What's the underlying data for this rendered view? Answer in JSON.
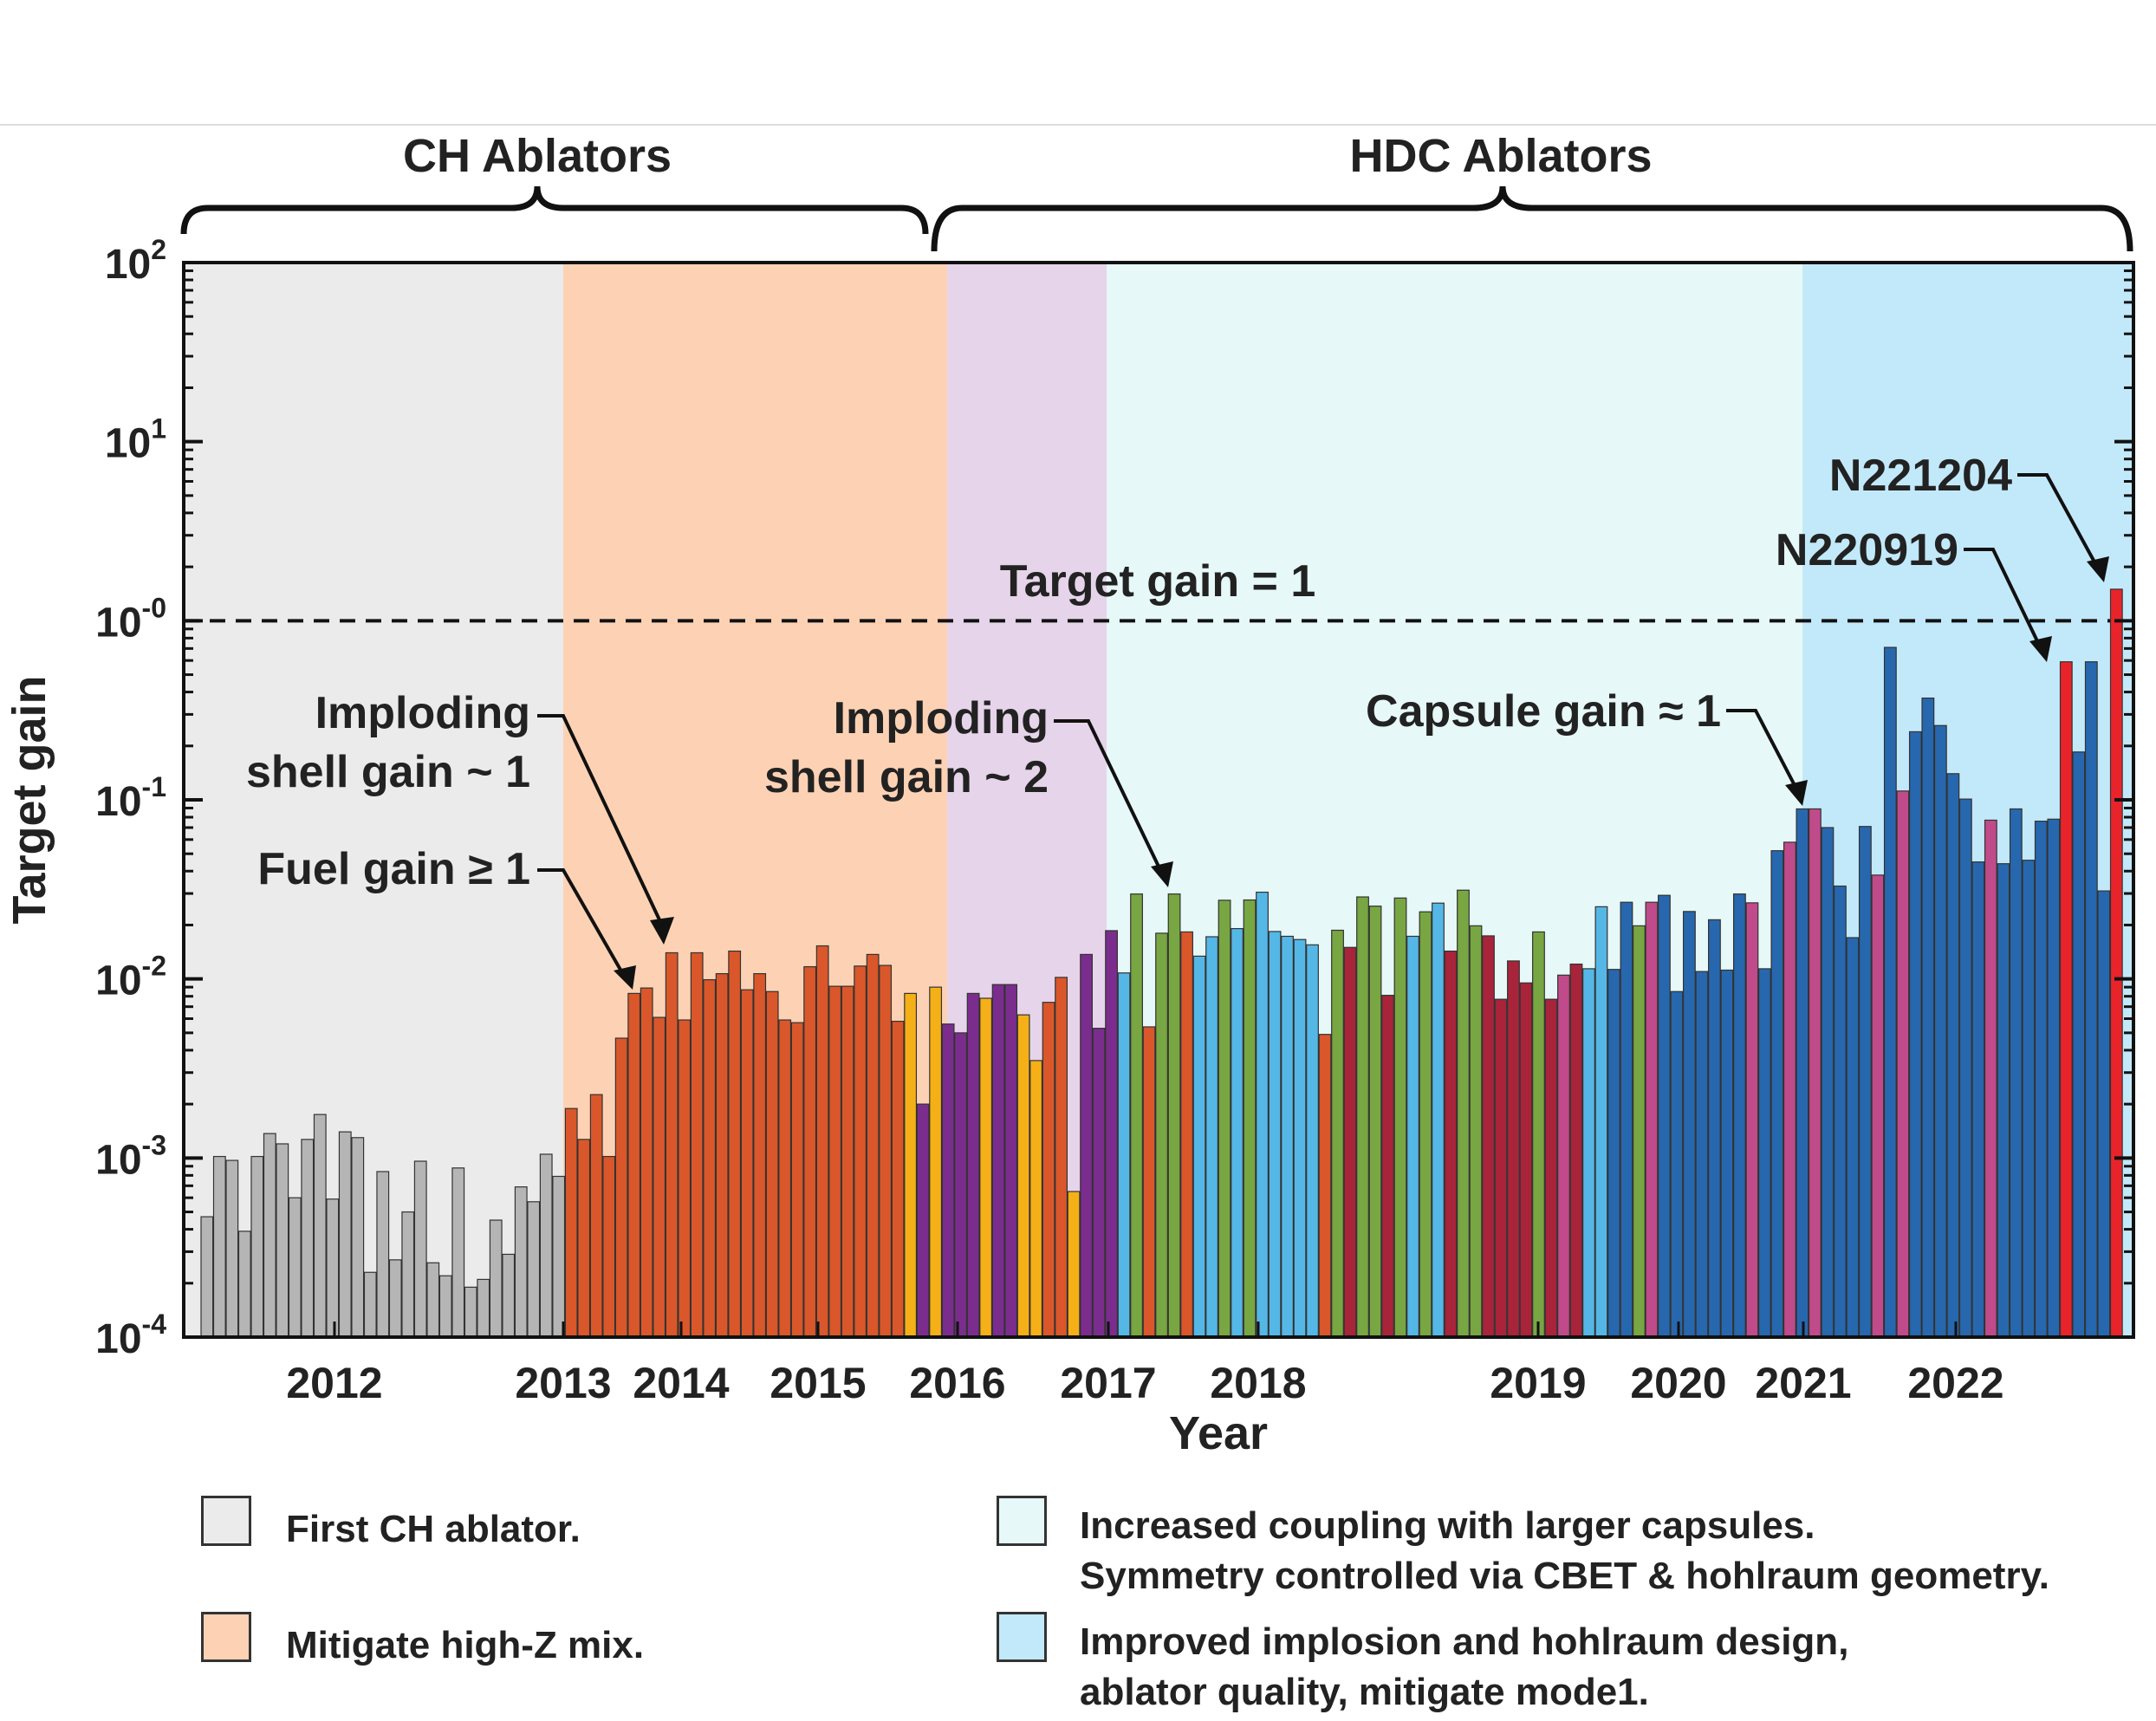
{
  "chart_data": {
    "type": "bar",
    "ylabel": "Target gain",
    "xlabel": "Year",
    "yscale": "log",
    "ylim": [
      0.0001,
      100
    ],
    "yticks": [
      "10-4",
      "10-3",
      "10-2",
      "10-1",
      "10-0",
      "101",
      "102"
    ],
    "xticks": [
      "2012",
      "2013",
      "2014",
      "2015",
      "2016",
      "2017",
      "2018",
      "2019",
      "2020",
      "2021",
      "2022"
    ],
    "categories": [
      "CH Ablators",
      "HDC Ablators"
    ],
    "gain_line": {
      "value": 1,
      "label": "Target gain = 1"
    },
    "regions": [
      {
        "name": "First CH ablator.",
        "color": "#ebebeb"
      },
      {
        "name": "Mitigate high-Z mix.",
        "color": "#fdd2b4"
      },
      {
        "name": "",
        "color": "#e6d4ea"
      },
      {
        "name": "Increased coupling with larger capsules.\nSymmetry controlled via CBET & hohlraum geometry.",
        "color": "#e6f8f7"
      },
      {
        "name": "Improved implosion and hohlraum design,\nablator quality, mitigate mode1.",
        "color": "#c2e9fa"
      }
    ],
    "annotations": [
      {
        "text": "Imploding\nshell gain ~ 1"
      },
      {
        "text": "Fuel gain ≥ 1"
      },
      {
        "text": "Imploding\nshell gain ~ 2"
      },
      {
        "text": "Capsule gain ≈ 1"
      },
      {
        "text": "N220919"
      },
      {
        "text": "N221204"
      }
    ],
    "bar_colors": {
      "g": "#b5b5b5",
      "o": "#d9572a",
      "y": "#f5b018",
      "p": "#7b2d8e",
      "G": "#78a642",
      "c": "#55b7e6",
      "r": "#a8243a",
      "m": "#c04b8a",
      "b": "#2767ae",
      "R": "#e8242a"
    },
    "bars": [
      {
        "v": 0.00047,
        "c": "g"
      },
      {
        "v": 0.00102,
        "c": "g"
      },
      {
        "v": 0.00097,
        "c": "g"
      },
      {
        "v": 0.00039,
        "c": "g"
      },
      {
        "v": 0.00102,
        "c": "g"
      },
      {
        "v": 0.00137,
        "c": "g"
      },
      {
        "v": 0.0012,
        "c": "g"
      },
      {
        "v": 0.0006,
        "c": "g"
      },
      {
        "v": 0.00127,
        "c": "g"
      },
      {
        "v": 0.00175,
        "c": "g"
      },
      {
        "v": 0.00059,
        "c": "g"
      },
      {
        "v": 0.0014,
        "c": "g"
      },
      {
        "v": 0.0013,
        "c": "g"
      },
      {
        "v": 0.00023,
        "c": "g"
      },
      {
        "v": 0.00084,
        "c": "g"
      },
      {
        "v": 0.00027,
        "c": "g"
      },
      {
        "v": 0.0005,
        "c": "g"
      },
      {
        "v": 0.00096,
        "c": "g"
      },
      {
        "v": 0.00026,
        "c": "g"
      },
      {
        "v": 0.00022,
        "c": "g"
      },
      {
        "v": 0.00088,
        "c": "g"
      },
      {
        "v": 0.00019,
        "c": "g"
      },
      {
        "v": 0.00021,
        "c": "g"
      },
      {
        "v": 0.00045,
        "c": "g"
      },
      {
        "v": 0.00029,
        "c": "g"
      },
      {
        "v": 0.00069,
        "c": "g"
      },
      {
        "v": 0.00057,
        "c": "g"
      },
      {
        "v": 0.00105,
        "c": "g"
      },
      {
        "v": 0.00079,
        "c": "g"
      },
      {
        "v": 0.00189,
        "c": "o"
      },
      {
        "v": 0.00127,
        "c": "o"
      },
      {
        "v": 0.00226,
        "c": "o"
      },
      {
        "v": 0.00102,
        "c": "o"
      },
      {
        "v": 0.00467,
        "c": "o"
      },
      {
        "v": 0.0083,
        "c": "o"
      },
      {
        "v": 0.0089,
        "c": "o"
      },
      {
        "v": 0.0061,
        "c": "o"
      },
      {
        "v": 0.014,
        "c": "o"
      },
      {
        "v": 0.0059,
        "c": "o"
      },
      {
        "v": 0.014,
        "c": "o"
      },
      {
        "v": 0.0099,
        "c": "o"
      },
      {
        "v": 0.0107,
        "c": "o"
      },
      {
        "v": 0.0143,
        "c": "o"
      },
      {
        "v": 0.0087,
        "c": "o"
      },
      {
        "v": 0.0107,
        "c": "o"
      },
      {
        "v": 0.0085,
        "c": "o"
      },
      {
        "v": 0.0059,
        "c": "o"
      },
      {
        "v": 0.0057,
        "c": "o"
      },
      {
        "v": 0.0117,
        "c": "o"
      },
      {
        "v": 0.0153,
        "c": "o"
      },
      {
        "v": 0.0091,
        "c": "o"
      },
      {
        "v": 0.0091,
        "c": "o"
      },
      {
        "v": 0.0118,
        "c": "o"
      },
      {
        "v": 0.0137,
        "c": "o"
      },
      {
        "v": 0.0119,
        "c": "o"
      },
      {
        "v": 0.0058,
        "c": "o"
      },
      {
        "v": 0.0083,
        "c": "y"
      },
      {
        "v": 0.002,
        "c": "p"
      },
      {
        "v": 0.009,
        "c": "y"
      },
      {
        "v": 0.0056,
        "c": "p"
      },
      {
        "v": 0.005,
        "c": "p"
      },
      {
        "v": 0.0083,
        "c": "p"
      },
      {
        "v": 0.0078,
        "c": "y"
      },
      {
        "v": 0.0093,
        "c": "p"
      },
      {
        "v": 0.0093,
        "c": "p"
      },
      {
        "v": 0.0063,
        "c": "y"
      },
      {
        "v": 0.0035,
        "c": "y"
      },
      {
        "v": 0.0074,
        "c": "o"
      },
      {
        "v": 0.0102,
        "c": "o"
      },
      {
        "v": 0.00065,
        "c": "y"
      },
      {
        "v": 0.0137,
        "c": "p"
      },
      {
        "v": 0.0053,
        "c": "p"
      },
      {
        "v": 0.0186,
        "c": "p"
      },
      {
        "v": 0.0108,
        "c": "c"
      },
      {
        "v": 0.0298,
        "c": "G"
      },
      {
        "v": 0.0054,
        "c": "o"
      },
      {
        "v": 0.018,
        "c": "G"
      },
      {
        "v": 0.0298,
        "c": "G"
      },
      {
        "v": 0.0183,
        "c": "o"
      },
      {
        "v": 0.0134,
        "c": "c"
      },
      {
        "v": 0.0172,
        "c": "c"
      },
      {
        "v": 0.0275,
        "c": "G"
      },
      {
        "v": 0.0191,
        "c": "c"
      },
      {
        "v": 0.0276,
        "c": "G"
      },
      {
        "v": 0.0305,
        "c": "c"
      },
      {
        "v": 0.0184,
        "c": "c"
      },
      {
        "v": 0.0173,
        "c": "c"
      },
      {
        "v": 0.0166,
        "c": "c"
      },
      {
        "v": 0.0155,
        "c": "c"
      },
      {
        "v": 0.0049,
        "c": "o"
      },
      {
        "v": 0.0187,
        "c": "G"
      },
      {
        "v": 0.015,
        "c": "r"
      },
      {
        "v": 0.0287,
        "c": "G"
      },
      {
        "v": 0.0255,
        "c": "G"
      },
      {
        "v": 0.0081,
        "c": "r"
      },
      {
        "v": 0.0283,
        "c": "G"
      },
      {
        "v": 0.0173,
        "c": "c"
      },
      {
        "v": 0.0237,
        "c": "G"
      },
      {
        "v": 0.0265,
        "c": "c"
      },
      {
        "v": 0.0143,
        "c": "r"
      },
      {
        "v": 0.0313,
        "c": "G"
      },
      {
        "v": 0.0198,
        "c": "G"
      },
      {
        "v": 0.0174,
        "c": "r"
      },
      {
        "v": 0.0077,
        "c": "r"
      },
      {
        "v": 0.0126,
        "c": "r"
      },
      {
        "v": 0.0095,
        "c": "r"
      },
      {
        "v": 0.0183,
        "c": "G"
      },
      {
        "v": 0.0077,
        "c": "r"
      },
      {
        "v": 0.0105,
        "c": "m"
      },
      {
        "v": 0.0121,
        "c": "r"
      },
      {
        "v": 0.0114,
        "c": "c"
      },
      {
        "v": 0.0253,
        "c": "c"
      },
      {
        "v": 0.0113,
        "c": "b"
      },
      {
        "v": 0.0268,
        "c": "b"
      },
      {
        "v": 0.0198,
        "c": "G"
      },
      {
        "v": 0.0268,
        "c": "m"
      },
      {
        "v": 0.0293,
        "c": "b"
      },
      {
        "v": 0.0085,
        "c": "b"
      },
      {
        "v": 0.0238,
        "c": "b"
      },
      {
        "v": 0.011,
        "c": "b"
      },
      {
        "v": 0.0214,
        "c": "b"
      },
      {
        "v": 0.0112,
        "c": "b"
      },
      {
        "v": 0.0298,
        "c": "b"
      },
      {
        "v": 0.0266,
        "c": "m"
      },
      {
        "v": 0.0114,
        "c": "b"
      },
      {
        "v": 0.052,
        "c": "b"
      },
      {
        "v": 0.058,
        "c": "m"
      },
      {
        "v": 0.089,
        "c": "b"
      },
      {
        "v": 0.089,
        "c": "m"
      },
      {
        "v": 0.07,
        "c": "b"
      },
      {
        "v": 0.033,
        "c": "b"
      },
      {
        "v": 0.017,
        "c": "b"
      },
      {
        "v": 0.071,
        "c": "b"
      },
      {
        "v": 0.038,
        "c": "m"
      },
      {
        "v": 0.71,
        "c": "b"
      },
      {
        "v": 0.112,
        "c": "m"
      },
      {
        "v": 0.24,
        "c": "b"
      },
      {
        "v": 0.37,
        "c": "b"
      },
      {
        "v": 0.26,
        "c": "b"
      },
      {
        "v": 0.14,
        "c": "b"
      },
      {
        "v": 0.101,
        "c": "b"
      },
      {
        "v": 0.045,
        "c": "b"
      },
      {
        "v": 0.077,
        "c": "m"
      },
      {
        "v": 0.044,
        "c": "b"
      },
      {
        "v": 0.089,
        "c": "b"
      },
      {
        "v": 0.046,
        "c": "b"
      },
      {
        "v": 0.076,
        "c": "b"
      },
      {
        "v": 0.078,
        "c": "b"
      },
      {
        "v": 0.59,
        "c": "R"
      },
      {
        "v": 0.185,
        "c": "b"
      },
      {
        "v": 0.59,
        "c": "b"
      },
      {
        "v": 0.031,
        "c": "b"
      },
      {
        "v": 1.5,
        "c": "R"
      }
    ]
  }
}
